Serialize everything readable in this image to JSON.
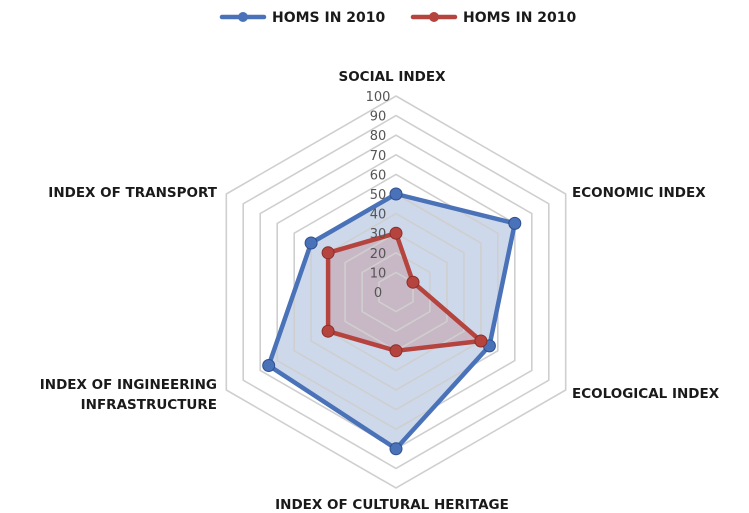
{
  "chart_data": {
    "type": "radar",
    "axes": [
      "SOCIAL INDEX",
      "ECONOMIC INDEX",
      "ECOLOGICAL INDEX",
      "INDEX OF CULTURAL HERITAGE",
      "INDEX OF INGINEERING INFRASTRUCTURE",
      "INDEX OF TRANSPORT"
    ],
    "axis_label_lines": [
      [
        "SOCIAL INDEX"
      ],
      [
        "ECONOMIC INDEX"
      ],
      [
        "ECOLOGICAL INDEX"
      ],
      [
        "INDEX OF CULTURAL HERITAGE"
      ],
      [
        "INDEX OF INGINEERING",
        "INFRASTRUCTURE"
      ],
      [
        "INDEX OF TRANSPORT"
      ]
    ],
    "ticks": [
      "0",
      "10",
      "20",
      "30",
      "40",
      "50",
      "60",
      "70",
      "80",
      "90",
      "100"
    ],
    "rlim": [
      0,
      100
    ],
    "series": [
      {
        "name": "HOMS IN 2010",
        "color": "#4a72b8",
        "values": [
          50,
          70,
          55,
          80,
          75,
          50
        ]
      },
      {
        "name": "HOMS IN 2010",
        "color": "#b5433e",
        "values": [
          30,
          10,
          50,
          30,
          40,
          40
        ]
      }
    ],
    "legend": "top"
  }
}
